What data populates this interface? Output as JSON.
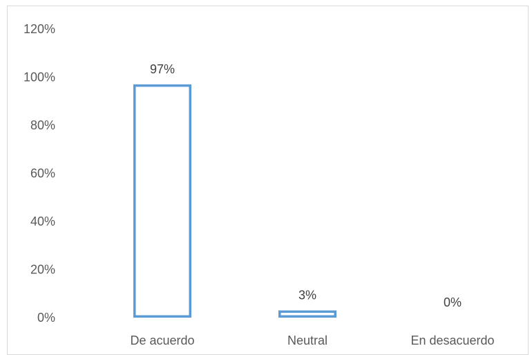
{
  "chart_data": {
    "type": "bar",
    "categories": [
      "De acuerdo",
      "Neutral",
      "En desacuerdo"
    ],
    "values": [
      97,
      3,
      0
    ],
    "data_labels": [
      "97%",
      "3%",
      "0%"
    ],
    "title": "",
    "xlabel": "",
    "ylabel": "",
    "ylim": [
      0,
      120
    ],
    "yticks": [
      0,
      20,
      40,
      60,
      80,
      100,
      120
    ],
    "ytick_labels": [
      "0%",
      "20%",
      "40%",
      "60%",
      "80%",
      "100%",
      "120%"
    ],
    "grid": false,
    "legend": "none",
    "bar_style": "outline",
    "bar_color": "#5b9bd5"
  }
}
